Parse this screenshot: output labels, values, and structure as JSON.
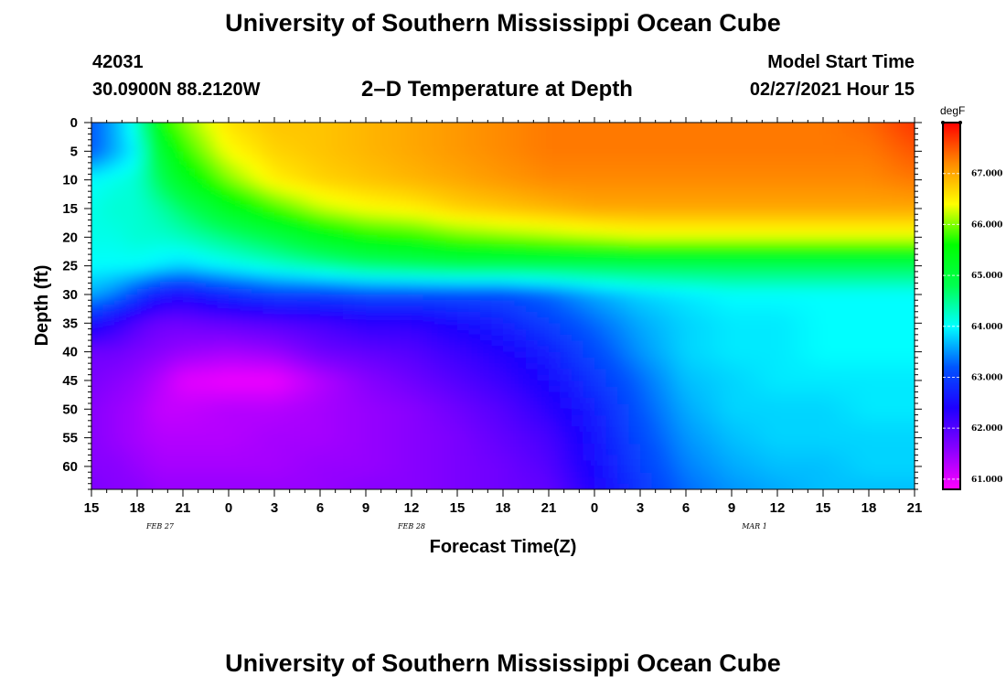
{
  "header": {
    "title": "University of Southern Mississippi Ocean Cube",
    "station_id": "42031",
    "station_coords": "30.0900N 88.2120W",
    "plot_name": "2–D Temperature at Depth",
    "model_label": "Model Start Time",
    "model_time": "02/27/2021 Hour 15"
  },
  "footer": {
    "title": "University of Southern Mississippi Ocean Cube"
  },
  "chart_data": {
    "type": "heatmap",
    "title": "2–D Temperature at Depth",
    "xlabel": "Forecast Time(Z)",
    "ylabel": "Depth (ft)",
    "x_hours_range": [
      0,
      54
    ],
    "x_tick_labels": [
      "15",
      "18",
      "21",
      "0",
      "3",
      "6",
      "9",
      "12",
      "15",
      "18",
      "21",
      "0",
      "3",
      "6",
      "9",
      "12",
      "15",
      "18",
      "21"
    ],
    "date_labels": [
      {
        "text": "FEB 27",
        "hour": 4.5
      },
      {
        "text": "FEB 28",
        "hour": 21
      },
      {
        "text": "MAR 1",
        "hour": 43.5
      }
    ],
    "ylim": [
      0,
      64
    ],
    "y_ticks": [
      0,
      5,
      10,
      15,
      20,
      25,
      30,
      35,
      40,
      45,
      50,
      55,
      60
    ],
    "colorbar": {
      "unit": "degF",
      "range": [
        60.8,
        68.0
      ],
      "ticks": [
        61.0,
        62.0,
        63.0,
        64.0,
        65.0,
        66.0,
        67.0
      ],
      "tick_labels": [
        "61.000",
        "62.000",
        "63.000",
        "64.000",
        "65.000",
        "66.000",
        "67.000"
      ]
    },
    "palette": [
      "#ff00ff",
      "#8800ff",
      "#1e00ff",
      "#0055ff",
      "#00ffff",
      "#00ff50",
      "#00ff00",
      "#ffff00",
      "#ff8a00",
      "#ff0000"
    ],
    "grid_hours": [
      0,
      1.5,
      3,
      4.5,
      6,
      9,
      12,
      15,
      18,
      21,
      24,
      27,
      30,
      33,
      36,
      39,
      42,
      45,
      48,
      51,
      54
    ],
    "grid_depths": [
      0,
      5,
      10,
      15,
      20,
      25,
      30,
      35,
      40,
      45,
      50,
      55,
      60,
      64
    ],
    "temperature_grid": [
      [
        63.2,
        63.6,
        64.2,
        65.6,
        66.0,
        66.6,
        66.8,
        66.8,
        66.9,
        67.0,
        67.1,
        67.2,
        67.3,
        67.3,
        67.3,
        67.3,
        67.3,
        67.3,
        67.3,
        67.4,
        67.7
      ],
      [
        63.2,
        63.6,
        64.0,
        65.1,
        65.7,
        66.4,
        66.7,
        66.8,
        66.9,
        67.0,
        67.1,
        67.2,
        67.3,
        67.3,
        67.3,
        67.3,
        67.3,
        67.3,
        67.3,
        67.3,
        67.5
      ],
      [
        64.0,
        64.1,
        64.2,
        64.8,
        65.3,
        66.0,
        66.5,
        66.7,
        66.8,
        66.9,
        67.0,
        67.1,
        67.2,
        67.2,
        67.2,
        67.2,
        67.2,
        67.2,
        67.2,
        67.2,
        67.3
      ],
      [
        64.1,
        64.2,
        64.2,
        64.4,
        64.7,
        65.3,
        65.8,
        66.2,
        66.4,
        66.5,
        66.7,
        66.8,
        66.9,
        67.0,
        67.0,
        67.0,
        67.0,
        67.0,
        67.0,
        67.0,
        67.0
      ],
      [
        64.1,
        64.1,
        64.2,
        64.2,
        64.3,
        64.6,
        64.9,
        65.3,
        65.6,
        65.7,
        65.9,
        66.0,
        66.1,
        66.2,
        66.3,
        66.3,
        66.3,
        66.3,
        66.3,
        66.3,
        66.3
      ],
      [
        64.0,
        64.0,
        64.0,
        63.9,
        63.8,
        64.0,
        64.2,
        64.4,
        64.6,
        64.7,
        64.8,
        64.8,
        64.8,
        64.8,
        64.8,
        64.8,
        64.8,
        64.8,
        64.8,
        64.8,
        64.8
      ],
      [
        63.6,
        63.4,
        63.0,
        62.6,
        62.5,
        62.8,
        63.0,
        63.0,
        63.1,
        63.1,
        63.1,
        63.1,
        63.3,
        63.6,
        63.8,
        63.9,
        64.0,
        64.0,
        64.0,
        64.0,
        64.0
      ],
      [
        62.6,
        62.3,
        62.0,
        61.8,
        61.8,
        61.9,
        62.0,
        62.1,
        62.3,
        62.3,
        62.5,
        62.7,
        63.0,
        63.3,
        63.6,
        63.8,
        63.9,
        63.9,
        64.0,
        64.0,
        64.0
      ],
      [
        61.8,
        61.8,
        61.7,
        61.6,
        61.5,
        61.4,
        61.5,
        61.8,
        61.9,
        62.0,
        62.2,
        62.4,
        62.7,
        63.1,
        63.5,
        63.8,
        63.9,
        63.9,
        64.0,
        64.0,
        64.0
      ],
      [
        61.7,
        61.6,
        61.5,
        61.3,
        61.0,
        60.9,
        60.9,
        61.3,
        61.6,
        61.8,
        62.0,
        62.2,
        62.5,
        62.9,
        63.3,
        63.7,
        63.8,
        63.9,
        63.9,
        63.9,
        63.9
      ],
      [
        61.6,
        61.5,
        61.4,
        61.2,
        61.2,
        61.3,
        61.3,
        61.4,
        61.5,
        61.6,
        61.8,
        62.0,
        62.3,
        62.7,
        63.2,
        63.6,
        63.8,
        63.8,
        63.8,
        63.9,
        63.9
      ],
      [
        61.6,
        61.5,
        61.4,
        61.3,
        61.3,
        61.3,
        61.4,
        61.4,
        61.5,
        61.6,
        61.7,
        61.9,
        62.1,
        62.6,
        63.1,
        63.5,
        63.7,
        63.8,
        63.8,
        63.8,
        63.8
      ],
      [
        61.6,
        61.6,
        61.5,
        61.4,
        61.4,
        61.4,
        61.4,
        61.5,
        61.5,
        61.6,
        61.7,
        61.8,
        62.0,
        62.5,
        63.0,
        63.4,
        63.6,
        63.7,
        63.7,
        63.8,
        63.8
      ],
      [
        61.7,
        61.6,
        61.6,
        61.5,
        61.5,
        61.5,
        61.5,
        61.5,
        61.6,
        61.6,
        61.7,
        61.8,
        61.9,
        62.4,
        62.9,
        63.3,
        63.5,
        63.6,
        63.7,
        63.7,
        63.7
      ]
    ]
  }
}
